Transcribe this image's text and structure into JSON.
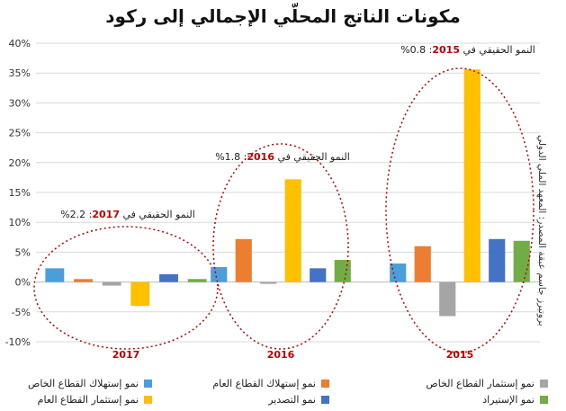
{
  "title": "مكونات الناتج المحلّي الإجمالي إلى ركود",
  "source": "بروتيرز جاسم عبقة المصدر: المعهد الملي الدولي",
  "colors": {
    "consumption_private": "#4a9fdb",
    "consumption_public": "#ed7d31",
    "investment_private": "#a5a5a5",
    "investment_public": "#ffc000",
    "exports": "#4472c4",
    "imports": "#70ad47",
    "ellipse": "#c00000",
    "highlight_year": "#c00000"
  },
  "annotations": [
    {
      "prefix": "النمو الحقيقي في",
      "year": "2015",
      "value": "0.8%"
    },
    {
      "prefix": "النمو الحقيقي في",
      "year": "2016",
      "value": "1.8%"
    },
    {
      "prefix": "النمو الحقيقي في",
      "year": "2017",
      "value": "2.2%"
    }
  ],
  "chart_data": {
    "type": "bar",
    "categories": [
      "2017",
      "2016",
      "2015"
    ],
    "series": [
      {
        "name": "نمو إستهلاك القطاع الخاص",
        "color": "#4a9fdb",
        "values": [
          2.3,
          2.5,
          3.1
        ]
      },
      {
        "name": "نمو إستهلاك القطاع العام",
        "color": "#ed7d31",
        "values": [
          0.5,
          7.2,
          6.0
        ]
      },
      {
        "name": "نمو إستثمار القطاع الخاص",
        "color": "#a5a5a5",
        "values": [
          -0.6,
          -0.3,
          -5.7
        ]
      },
      {
        "name": "نمو إستثمار القطاع العام",
        "color": "#ffc000",
        "values": [
          -4.0,
          17.2,
          35.6
        ]
      },
      {
        "name": "نمو التصدير",
        "color": "#4472c4",
        "values": [
          1.3,
          2.3,
          7.2
        ]
      },
      {
        "name": "نمو الإستيراد",
        "color": "#70ad47",
        "values": [
          0.5,
          3.7,
          6.9
        ]
      }
    ],
    "ylim": [
      -10,
      40
    ],
    "yticks": [
      "-10%",
      "-5%",
      "0%",
      "5%",
      "10%",
      "15%",
      "20%",
      "25%",
      "30%",
      "35%",
      "40%"
    ],
    "grid": true,
    "legend_position": "bottom"
  }
}
